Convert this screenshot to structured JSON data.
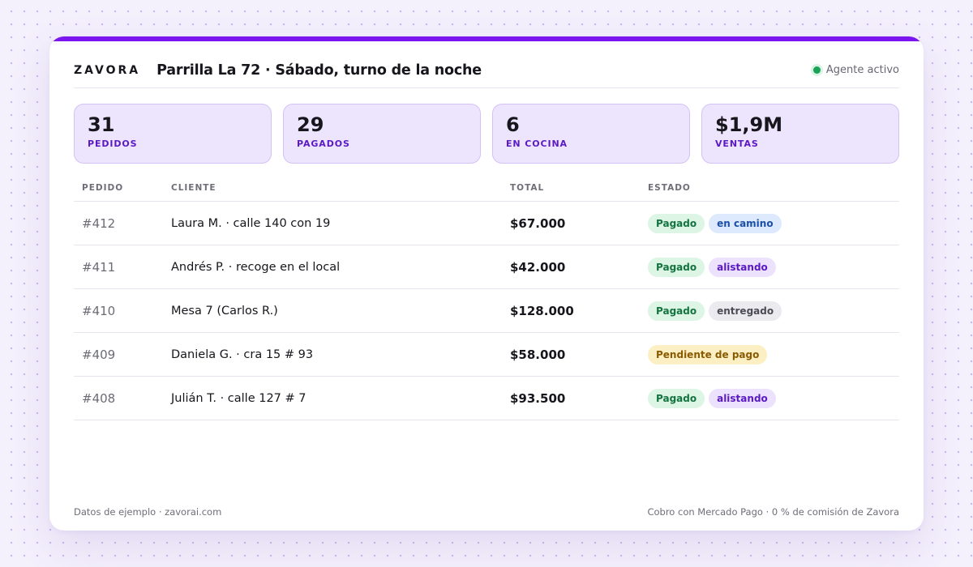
{
  "header": {
    "logo": "ZAVORA",
    "title": "Parrilla La 72 · Sábado, turno de la noche",
    "agent_status": "Agente activo"
  },
  "stats": [
    {
      "value": "31",
      "label": "PEDIDOS"
    },
    {
      "value": "29",
      "label": "PAGADOS"
    },
    {
      "value": "6",
      "label": "EN COCINA"
    },
    {
      "value": "$1,9M",
      "label": "VENTAS"
    }
  ],
  "table": {
    "columns": {
      "pedido": "PEDIDO",
      "cliente": "CLIENTE",
      "total": "TOTAL",
      "estado": "ESTADO"
    },
    "rows": [
      {
        "pedido": "#412",
        "cliente": "Laura M. · calle 140 con 19",
        "total": "$67.000",
        "badges": [
          "Pagado",
          "en camino"
        ]
      },
      {
        "pedido": "#411",
        "cliente": "Andrés P. · recoge en el local",
        "total": "$42.000",
        "badges": [
          "Pagado",
          "alistando"
        ]
      },
      {
        "pedido": "#410",
        "cliente": "Mesa 7 (Carlos R.)",
        "total": "$128.000",
        "badges": [
          "Pagado",
          "entregado"
        ]
      },
      {
        "pedido": "#409",
        "cliente": "Daniela G. · cra 15 # 93",
        "total": "$58.000",
        "badges": [
          "Pendiente de pago"
        ]
      },
      {
        "pedido": "#408",
        "cliente": "Julián T. · calle 127 # 7",
        "total": "$93.500",
        "badges": [
          "Pagado",
          "alistando"
        ]
      }
    ]
  },
  "footer": {
    "left": "Datos de ejemplo · zavorai.com",
    "right": "Cobro con Mercado Pago · 0 % de comisión de Zavora"
  },
  "colors": {
    "accent": "#7c16f0",
    "stat_bg": "#ede5fd",
    "active_dot": "#1aa258",
    "paid": "#14743f",
    "on_the_way": "#1b4fa8",
    "preparing": "#5a19c4",
    "delivered": "#4b4b55",
    "pending": "#8a5a00"
  }
}
